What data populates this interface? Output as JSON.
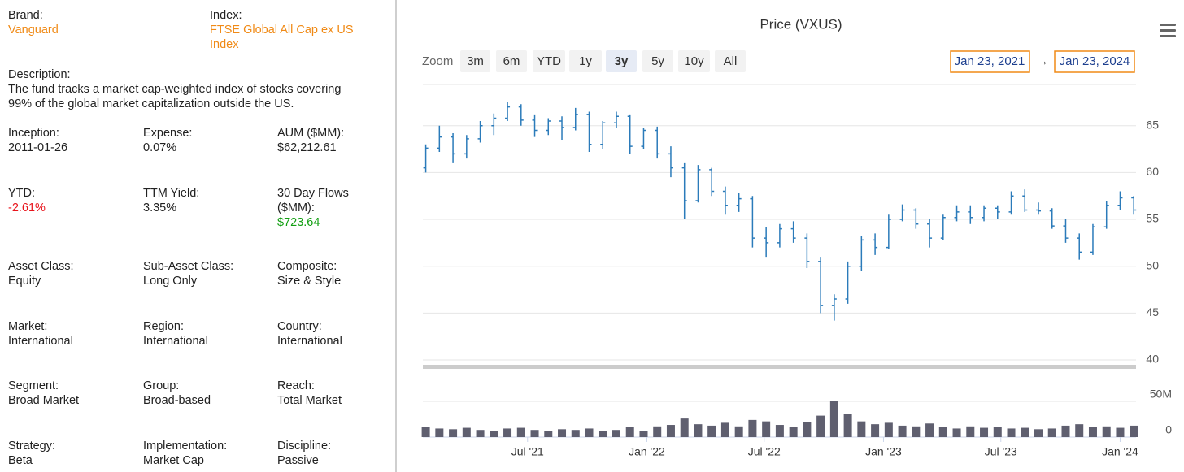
{
  "info": {
    "top_fields": [
      {
        "label": "Brand:",
        "value": "Vanguard"
      },
      {
        "label": "Index:",
        "value": "FTSE Global All Cap ex US Index"
      }
    ],
    "description": {
      "label": "Description:",
      "text": "The fund tracks a market cap-weighted index of stocks covering 99% of the global market capitalization outside the US."
    },
    "fields": [
      [
        {
          "label": "Inception:",
          "value": "2011-01-26"
        },
        {
          "label": "Expense:",
          "value": "0.07%"
        },
        {
          "label": "AUM ($MM):",
          "value": "$62,212.61"
        }
      ],
      [
        {
          "label": "YTD:",
          "value": "-2.61%"
        },
        {
          "label": "TTM Yield:",
          "value": "3.35%"
        },
        {
          "label": "30 Day Flows ($MM):",
          "value": "$723.64"
        }
      ],
      [
        {
          "label": "Asset Class:",
          "value": "Equity"
        },
        {
          "label": "Sub-Asset Class:",
          "value": "Long Only"
        },
        {
          "label": "Composite:",
          "value": "Size & Style"
        }
      ],
      [
        {
          "label": "Market:",
          "value": "International"
        },
        {
          "label": "Region:",
          "value": "International"
        },
        {
          "label": "Country:",
          "value": "International"
        }
      ],
      [
        {
          "label": "Segment:",
          "value": "Broad Market"
        },
        {
          "label": "Group:",
          "value": "Broad-based"
        },
        {
          "label": "Reach:",
          "value": "Total Market"
        }
      ],
      [
        {
          "label": "Strategy:",
          "value": "Beta"
        },
        {
          "label": "Implementation:",
          "value": "Market Cap"
        },
        {
          "label": "Discipline:",
          "value": "Passive"
        }
      ]
    ]
  },
  "chart_data": {
    "type": "ohlc",
    "title": "Price (VXUS)",
    "zoom_label": "Zoom",
    "zoom_buttons": [
      "3m",
      "6m",
      "YTD",
      "1y",
      "3y",
      "5y",
      "10y",
      "All"
    ],
    "selected_zoom": "3y",
    "range_from": "Jan 23, 2021",
    "range_separator": "→",
    "range_to": "Jan 23, 2024",
    "color": "#2b7bba",
    "volume_color": "#5f5f6f",
    "x": [
      "2021-01-25",
      "2021-02-15",
      "2021-03-08",
      "2021-03-29",
      "2021-04-19",
      "2021-05-10",
      "2021-05-31",
      "2021-06-21",
      "2021-07-12",
      "2021-08-02",
      "2021-08-23",
      "2021-09-13",
      "2021-10-04",
      "2021-10-25",
      "2021-11-15",
      "2021-12-06",
      "2021-12-27",
      "2022-01-17",
      "2022-02-07",
      "2022-02-28",
      "2022-03-21",
      "2022-04-11",
      "2022-05-02",
      "2022-05-23",
      "2022-06-13",
      "2022-07-04",
      "2022-07-25",
      "2022-08-15",
      "2022-09-05",
      "2022-09-26",
      "2022-10-17",
      "2022-11-07",
      "2022-11-28",
      "2022-12-19",
      "2023-01-09",
      "2023-01-30",
      "2023-02-20",
      "2023-03-13",
      "2023-04-03",
      "2023-04-24",
      "2023-05-15",
      "2023-06-05",
      "2023-06-26",
      "2023-07-17",
      "2023-08-07",
      "2023-08-28",
      "2023-09-18",
      "2023-10-09",
      "2023-10-30",
      "2023-11-20",
      "2023-12-11",
      "2024-01-01",
      "2024-01-22"
    ],
    "open": [
      60.5,
      62.6,
      63.8,
      62.0,
      63.6,
      65.0,
      65.8,
      67.0,
      65.6,
      64.5,
      65.5,
      64.8,
      66.2,
      63.0,
      65.3,
      66.0,
      62.8,
      64.5,
      62.0,
      60.5,
      57.0,
      60.3,
      58.0,
      56.5,
      57.2,
      53.0,
      52.5,
      54.0,
      53.0,
      50.5,
      45.8,
      46.5,
      50.0,
      52.8,
      52.0,
      55.0,
      56.0,
      54.5,
      53.0,
      55.2,
      55.8,
      55.2,
      56.2,
      55.8,
      57.5,
      56.0,
      55.9,
      54.3,
      53.0,
      51.5,
      54.2,
      56.5,
      57.3
    ],
    "high": [
      63.0,
      65.0,
      64.2,
      64.0,
      65.5,
      66.3,
      67.5,
      67.3,
      66.2,
      65.8,
      66.0,
      66.9,
      66.5,
      65.5,
      66.5,
      66.2,
      64.8,
      64.9,
      62.8,
      61.0,
      60.8,
      60.5,
      58.5,
      57.8,
      57.5,
      54.2,
      54.5,
      54.8,
      53.5,
      51.0,
      47.0,
      50.5,
      53.2,
      53.5,
      55.5,
      56.6,
      56.2,
      55.0,
      55.5,
      56.5,
      56.5,
      56.5,
      56.5,
      58.0,
      58.2,
      56.8,
      56.2,
      55.0,
      53.5,
      54.5,
      57.0,
      58.0,
      57.5
    ],
    "low": [
      60.0,
      62.2,
      61.0,
      61.5,
      63.2,
      64.0,
      65.5,
      65.0,
      63.8,
      64.0,
      63.5,
      64.5,
      62.2,
      62.5,
      64.8,
      62.0,
      62.5,
      61.5,
      59.5,
      55.0,
      56.8,
      57.5,
      55.5,
      55.8,
      52.0,
      51.0,
      52.0,
      52.5,
      49.8,
      45.0,
      44.2,
      46.0,
      49.5,
      51.2,
      51.8,
      54.8,
      54.0,
      52.0,
      52.8,
      54.8,
      54.5,
      54.8,
      55.0,
      55.5,
      55.8,
      55.5,
      54.0,
      52.5,
      50.7,
      51.2,
      54.0,
      56.0,
      55.5
    ],
    "close": [
      62.6,
      63.8,
      62.0,
      63.6,
      65.0,
      65.8,
      67.0,
      65.6,
      64.5,
      65.5,
      64.8,
      66.2,
      63.0,
      65.3,
      66.0,
      62.8,
      64.5,
      62.0,
      60.5,
      57.0,
      60.3,
      58.0,
      56.5,
      57.2,
      53.0,
      52.5,
      54.0,
      53.0,
      50.5,
      45.8,
      46.5,
      50.0,
      52.8,
      52.0,
      55.0,
      56.0,
      54.5,
      53.0,
      55.2,
      55.8,
      55.2,
      56.2,
      55.8,
      57.5,
      56.0,
      55.9,
      54.3,
      53.0,
      51.5,
      54.2,
      56.5,
      57.3,
      56.0
    ],
    "volume": [
      14000000,
      12000000,
      11000000,
      13000000,
      10000000,
      9000000,
      12000000,
      13000000,
      10000000,
      9000000,
      11000000,
      10000000,
      12000000,
      9000000,
      10000000,
      14000000,
      8000000,
      15000000,
      17000000,
      26000000,
      18000000,
      16000000,
      20000000,
      15000000,
      24000000,
      22000000,
      17000000,
      14000000,
      21000000,
      30000000,
      50000000,
      32000000,
      22000000,
      18000000,
      20000000,
      16000000,
      15000000,
      19000000,
      14000000,
      12000000,
      15000000,
      13000000,
      14000000,
      12000000,
      13000000,
      11000000,
      12000000,
      16000000,
      18000000,
      14000000,
      15000000,
      13000000,
      16000000
    ],
    "xlim": [
      "2021-01-23",
      "2024-01-23"
    ],
    "xticks": [
      {
        "value": "2021-07-01",
        "label": "Jul '21"
      },
      {
        "value": "2022-01-01",
        "label": "Jan '22"
      },
      {
        "value": "2022-07-01",
        "label": "Jul '22"
      },
      {
        "value": "2023-01-01",
        "label": "Jan '23"
      },
      {
        "value": "2023-07-01",
        "label": "Jul '23"
      },
      {
        "value": "2024-01-01",
        "label": "Jan '24"
      }
    ],
    "ylim": [
      40,
      69.4
    ],
    "yticks": [
      40,
      45,
      50,
      55,
      60,
      65
    ],
    "y2lim": [
      0,
      50000000
    ],
    "y2ticks": [
      0,
      {
        "value": 50000000,
        "label": "50M"
      }
    ],
    "grid": true
  }
}
